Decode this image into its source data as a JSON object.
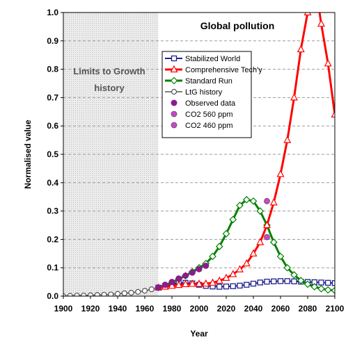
{
  "chart_data": {
    "type": "line",
    "title": "Global pollution",
    "xlabel": "Year",
    "ylabel": "Normalised value",
    "xlim": [
      1900,
      2100
    ],
    "ylim": [
      0,
      1.0
    ],
    "xticks": [
      "1900",
      "1920",
      "1940",
      "1960",
      "1980",
      "2000",
      "2020",
      "2040",
      "2060",
      "2080",
      "2100"
    ],
    "yticks": [
      "0.0",
      "0.1",
      "0.2",
      "0.3",
      "0.4",
      "0.5",
      "0.6",
      "0.7",
      "0.8",
      "0.9",
      "1.0"
    ],
    "grid": "horizontal dashed",
    "legend_position": "top-center",
    "shaded_region": {
      "x": [
        1900,
        1970
      ],
      "label_line1": "Limits to Growth",
      "label_line2": "history",
      "color": "#e4e4e4"
    },
    "series": [
      {
        "name": "Stabilized World",
        "color": "#1f1f8f",
        "marker": "square-open",
        "x": [
          1970,
          1975,
          1980,
          1985,
          1990,
          1995,
          2000,
          2005,
          2010,
          2015,
          2020,
          2025,
          2030,
          2035,
          2040,
          2045,
          2050,
          2055,
          2060,
          2065,
          2070,
          2075,
          2080,
          2085,
          2090,
          2095,
          2100
        ],
        "y": [
          0.03,
          0.036,
          0.042,
          0.046,
          0.047,
          0.045,
          0.04,
          0.036,
          0.034,
          0.033,
          0.034,
          0.035,
          0.037,
          0.04,
          0.044,
          0.048,
          0.051,
          0.052,
          0.053,
          0.053,
          0.052,
          0.051,
          0.05,
          0.049,
          0.048,
          0.047,
          0.046
        ]
      },
      {
        "name": "Comprehensive Tech'y",
        "color": "#ff0000",
        "marker": "triangle-open",
        "x": [
          1970,
          1975,
          1980,
          1985,
          1990,
          1995,
          2000,
          2005,
          2010,
          2015,
          2020,
          2025,
          2030,
          2035,
          2040,
          2045,
          2050,
          2055,
          2060,
          2065,
          2070,
          2075,
          2080,
          2085,
          2090,
          2095,
          2100
        ],
        "y": [
          0.03,
          0.033,
          0.036,
          0.039,
          0.042,
          0.043,
          0.043,
          0.044,
          0.047,
          0.054,
          0.064,
          0.077,
          0.094,
          0.115,
          0.15,
          0.19,
          0.25,
          0.33,
          0.43,
          0.55,
          0.7,
          0.87,
          1.0,
          1.12,
          0.96,
          0.82,
          0.64
        ]
      },
      {
        "name": "Standard Run",
        "color": "#008000",
        "marker": "diamond-open",
        "x": [
          1970,
          1975,
          1980,
          1985,
          1990,
          1995,
          2000,
          2005,
          2010,
          2015,
          2020,
          2025,
          2030,
          2035,
          2040,
          2045,
          2050,
          2055,
          2060,
          2065,
          2070,
          2075,
          2080,
          2085,
          2090,
          2095,
          2100
        ],
        "y": [
          0.03,
          0.038,
          0.048,
          0.06,
          0.072,
          0.086,
          0.1,
          0.115,
          0.14,
          0.175,
          0.22,
          0.27,
          0.32,
          0.34,
          0.335,
          0.3,
          0.25,
          0.19,
          0.14,
          0.1,
          0.075,
          0.055,
          0.042,
          0.033,
          0.026,
          0.022,
          0.02
        ]
      },
      {
        "name": "LtG history",
        "color": "#555555",
        "marker": "circle-open",
        "x": [
          1900,
          1905,
          1910,
          1915,
          1920,
          1925,
          1930,
          1935,
          1940,
          1945,
          1950,
          1955,
          1960,
          1965,
          1970
        ],
        "y": [
          0.0,
          0.001,
          0.002,
          0.002,
          0.003,
          0.004,
          0.005,
          0.006,
          0.008,
          0.01,
          0.012,
          0.015,
          0.019,
          0.024,
          0.03
        ]
      },
      {
        "name": "Observed data",
        "color": "#8b1c8b",
        "marker": "circle-filled",
        "x": [
          1970,
          1975,
          1980,
          1985,
          1990,
          1995,
          2000,
          2005
        ],
        "y": [
          0.03,
          0.04,
          0.05,
          0.062,
          0.072,
          0.083,
          0.095,
          0.107
        ]
      },
      {
        "name": "CO2 560 ppm",
        "color": "#cc44cc",
        "marker": "circle-point",
        "x": [
          2050
        ],
        "y": [
          0.335
        ]
      },
      {
        "name": "CO2 460 ppm",
        "color": "#cc44cc",
        "marker": "circle-point",
        "x": [
          2050
        ],
        "y": [
          0.208
        ]
      }
    ]
  }
}
